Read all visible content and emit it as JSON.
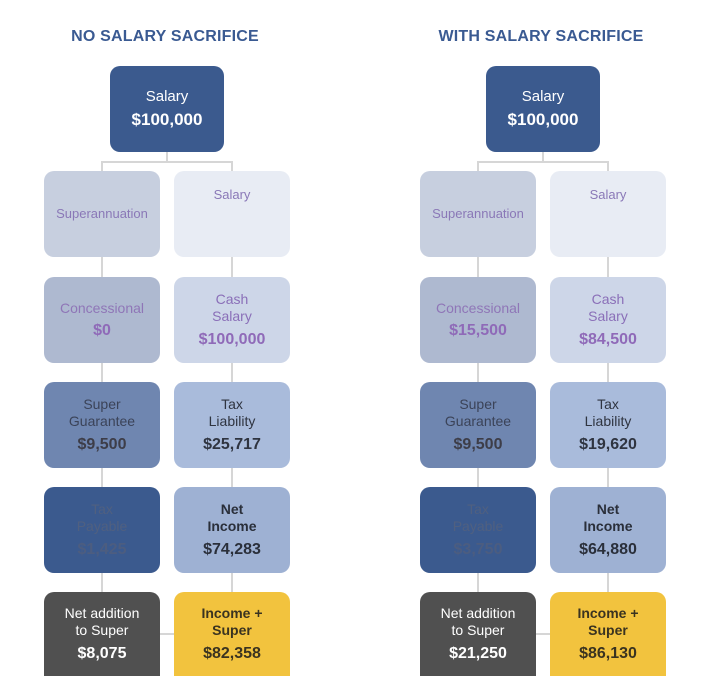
{
  "panels": [
    {
      "title": "NO SALARY SACRIFICE",
      "top": {
        "label": "Salary",
        "value": "$100,000"
      },
      "superannuation": {
        "label": "Superannuation"
      },
      "salary": {
        "label": "Salary"
      },
      "concessional": {
        "label": "Concessional",
        "value": "$0"
      },
      "cash_salary": {
        "label": "Cash\nSalary",
        "value": "$100,000"
      },
      "super_guarantee": {
        "label": "Super\nGuarantee",
        "value": "$9,500"
      },
      "tax_liability": {
        "label": "Tax\nLiability",
        "value": "$25,717"
      },
      "tax_payable": {
        "label": "Tax\nPayable",
        "value": "$1,425"
      },
      "net_income": {
        "label": "Net\nIncome",
        "value": "$74,283"
      },
      "net_addition": {
        "label": "Net addition\nto Super",
        "value": "$8,075"
      },
      "income_super": {
        "label": "Income +\nSuper",
        "value": "$82,358"
      }
    },
    {
      "title": "WITH SALARY SACRIFICE",
      "top": {
        "label": "Salary",
        "value": "$100,000"
      },
      "superannuation": {
        "label": "Superannuation"
      },
      "salary": {
        "label": "Salary"
      },
      "concessional": {
        "label": "Concessional",
        "value": "$15,500"
      },
      "cash_salary": {
        "label": "Cash\nSalary",
        "value": "$84,500"
      },
      "super_guarantee": {
        "label": "Super\nGuarantee",
        "value": "$9,500"
      },
      "tax_liability": {
        "label": "Tax\nLiability",
        "value": "$19,620"
      },
      "tax_payable": {
        "label": "Tax\nPayable",
        "value": "$3,750"
      },
      "net_income": {
        "label": "Net\nIncome",
        "value": "$64,880"
      },
      "net_addition": {
        "label": "Net addition\nto Super",
        "value": "$21,250"
      },
      "income_super": {
        "label": "Income +\nSuper",
        "value": "$86,130"
      }
    }
  ]
}
